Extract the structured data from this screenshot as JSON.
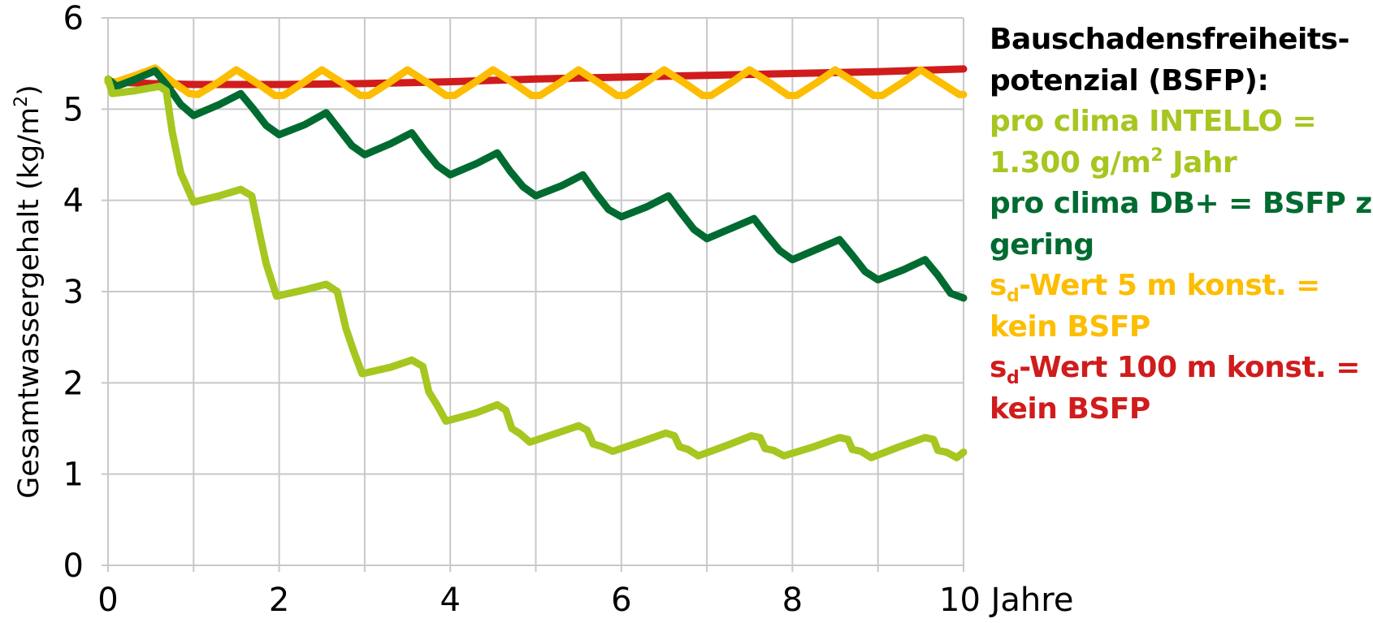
{
  "chart_data": {
    "type": "line",
    "title": "",
    "xlabel": "Jahre",
    "ylabel": "Gesamtwassergehalt (kg/m²)",
    "xlim": [
      0,
      10
    ],
    "ylim": [
      0,
      6
    ],
    "grid": true,
    "x_ticks": [
      0,
      2,
      4,
      6,
      8,
      10
    ],
    "x_tick_labels": [
      "0",
      "2",
      "4",
      "6",
      "8",
      "10 Jahre"
    ],
    "y_ticks": [
      0,
      1,
      2,
      3,
      4,
      5,
      6
    ],
    "y_tick_labels": [
      "0",
      "1",
      "2",
      "3",
      "4",
      "5",
      "6"
    ],
    "legend_position": "right",
    "legend_title": "Bauschadensfreiheits-potenzial (BSFP):",
    "series": [
      {
        "name": "pro clima INTELLO = 1.300 g/m² Jahr",
        "color": "#a6c620",
        "x": [
          0,
          0.05,
          0.3,
          0.6,
          0.68,
          0.75,
          0.85,
          1.0,
          1.3,
          1.55,
          1.68,
          1.78,
          1.85,
          1.97,
          2.3,
          2.55,
          2.68,
          2.78,
          2.87,
          2.97,
          3.3,
          3.55,
          3.68,
          3.75,
          3.85,
          3.95,
          4.3,
          4.55,
          4.65,
          4.72,
          4.82,
          4.93,
          5.25,
          5.5,
          5.6,
          5.67,
          5.78,
          5.9,
          6.25,
          6.52,
          6.62,
          6.68,
          6.78,
          6.9,
          7.25,
          7.52,
          7.62,
          7.68,
          7.78,
          7.9,
          8.25,
          8.55,
          8.65,
          8.7,
          8.8,
          8.92,
          9.25,
          9.55,
          9.65,
          9.7,
          9.8,
          9.92,
          10.0
        ],
        "values": [
          5.33,
          5.17,
          5.2,
          5.25,
          5.2,
          4.75,
          4.3,
          3.98,
          4.05,
          4.12,
          4.05,
          3.6,
          3.3,
          2.95,
          3.02,
          3.08,
          3.0,
          2.6,
          2.35,
          2.1,
          2.17,
          2.25,
          2.18,
          1.9,
          1.75,
          1.58,
          1.67,
          1.76,
          1.7,
          1.5,
          1.44,
          1.35,
          1.45,
          1.53,
          1.48,
          1.33,
          1.3,
          1.25,
          1.36,
          1.45,
          1.42,
          1.3,
          1.27,
          1.2,
          1.32,
          1.42,
          1.4,
          1.28,
          1.26,
          1.2,
          1.3,
          1.4,
          1.38,
          1.27,
          1.25,
          1.18,
          1.3,
          1.4,
          1.38,
          1.26,
          1.24,
          1.18,
          1.24
        ]
      },
      {
        "name": "pro clima DB+ = BSFP zu gering",
        "color": "#006b30",
        "x": [
          0,
          0.1,
          0.3,
          0.55,
          0.7,
          0.85,
          1.0,
          1.3,
          1.55,
          1.7,
          1.85,
          2.0,
          2.3,
          2.55,
          2.7,
          2.85,
          3.0,
          3.3,
          3.55,
          3.7,
          3.85,
          4.0,
          4.3,
          4.55,
          4.7,
          4.85,
          5.0,
          5.3,
          5.55,
          5.7,
          5.85,
          6.0,
          6.3,
          6.55,
          6.7,
          6.85,
          7.0,
          7.3,
          7.55,
          7.7,
          7.85,
          8.0,
          8.3,
          8.55,
          8.7,
          8.85,
          9.0,
          9.3,
          9.55,
          9.7,
          9.85,
          10.0
        ],
        "values": [
          5.33,
          5.25,
          5.32,
          5.42,
          5.25,
          5.05,
          4.93,
          5.05,
          5.17,
          5.0,
          4.82,
          4.72,
          4.83,
          4.96,
          4.78,
          4.6,
          4.5,
          4.62,
          4.74,
          4.55,
          4.38,
          4.28,
          4.4,
          4.52,
          4.32,
          4.15,
          4.05,
          4.16,
          4.28,
          4.08,
          3.9,
          3.82,
          3.93,
          4.05,
          3.86,
          3.68,
          3.58,
          3.7,
          3.8,
          3.62,
          3.45,
          3.35,
          3.47,
          3.57,
          3.4,
          3.22,
          3.13,
          3.24,
          3.35,
          3.18,
          2.98,
          2.93
        ]
      },
      {
        "name": "sd-Wert 5 m konst. = kein BSFP",
        "color": "#fdbd00",
        "x": [
          0,
          0.1,
          0.35,
          0.55,
          0.75,
          0.95,
          1.05,
          1.3,
          1.5,
          1.75,
          1.95,
          2.05,
          2.3,
          2.5,
          2.75,
          2.95,
          3.05,
          3.3,
          3.5,
          3.75,
          3.95,
          4.05,
          4.3,
          4.5,
          4.75,
          4.95,
          5.05,
          5.3,
          5.5,
          5.75,
          5.95,
          6.05,
          6.3,
          6.5,
          6.75,
          6.95,
          7.05,
          7.3,
          7.5,
          7.75,
          7.95,
          8.05,
          8.3,
          8.5,
          8.75,
          8.95,
          9.05,
          9.3,
          9.5,
          9.75,
          9.95,
          10.0
        ],
        "values": [
          5.3,
          5.3,
          5.38,
          5.45,
          5.3,
          5.17,
          5.16,
          5.3,
          5.43,
          5.28,
          5.15,
          5.15,
          5.3,
          5.43,
          5.28,
          5.15,
          5.15,
          5.3,
          5.43,
          5.28,
          5.15,
          5.15,
          5.3,
          5.43,
          5.28,
          5.15,
          5.15,
          5.3,
          5.43,
          5.28,
          5.15,
          5.15,
          5.3,
          5.43,
          5.28,
          5.15,
          5.15,
          5.3,
          5.43,
          5.28,
          5.15,
          5.15,
          5.3,
          5.43,
          5.28,
          5.15,
          5.15,
          5.3,
          5.43,
          5.28,
          5.16,
          5.16
        ]
      },
      {
        "name": "sd-Wert 100 m konst. = kein BSFP",
        "color": "#d01c1c",
        "x": [
          0,
          0.5,
          1,
          2,
          3,
          4,
          5,
          6,
          7,
          8,
          9,
          10
        ],
        "values": [
          5.3,
          5.28,
          5.27,
          5.27,
          5.28,
          5.3,
          5.33,
          5.35,
          5.37,
          5.39,
          5.41,
          5.44
        ]
      }
    ]
  },
  "legend": {
    "title_line1": "Bauschadensfreiheits-",
    "title_line2": "potenzial (BSFP):",
    "intello_line1": "pro clima INTELLO =",
    "intello_line2_pre": "1.300 g/m",
    "intello_line2_sup": "2",
    "intello_line2_post": " Jahr",
    "dbplus_line1": "pro clima DB+ = BSFP zu",
    "dbplus_line2": "gering",
    "sd5_s": "s",
    "sd5_sub": "d",
    "sd5_line1_post": "-Wert 5 m konst. =",
    "sd5_line2": "kein BSFP",
    "sd100_s": "s",
    "sd100_sub": "d",
    "sd100_line1_post": "-Wert 100 m konst. =",
    "sd100_line2": "kein BSFP",
    "colors": {
      "title": "#000000",
      "intello": "#a6c620",
      "dbplus": "#006b30",
      "sd5": "#fdbd00",
      "sd100": "#d01c1c"
    }
  },
  "axes": {
    "ylabel_main": "Gesamtwassergehalt (kg/m",
    "ylabel_sup": "2",
    "ylabel_close": ")"
  }
}
